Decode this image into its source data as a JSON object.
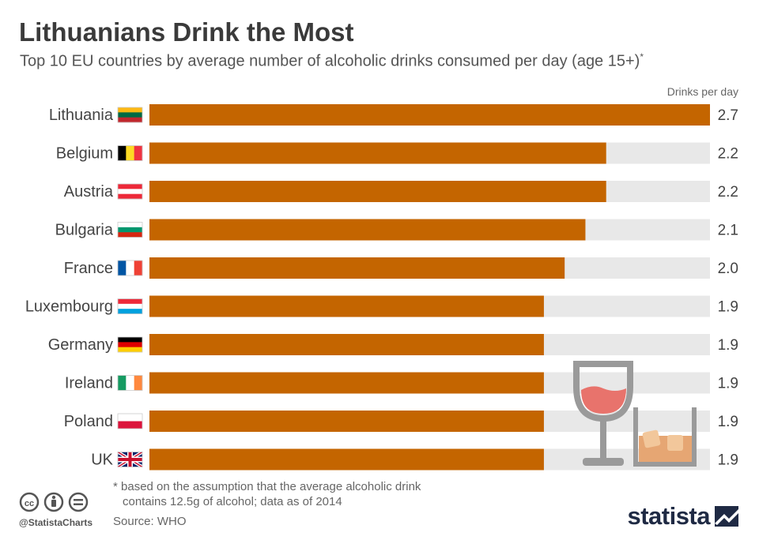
{
  "title": "Lithuanians Drink the Most",
  "subtitle": "Top 10 EU countries by average number of alcoholic drinks consumed per day (age 15+)",
  "subtitle_mark": "*",
  "unit_label": "Drinks per day",
  "footnote": {
    "line1": "* based on the assumption that the average alcoholic drink",
    "line2": "contains 12.5g of alcohol; data as of 2014"
  },
  "source": "Source: WHO",
  "handle": "@StatistaCharts",
  "brand": "statista",
  "colors": {
    "bar": "#c46500",
    "track": "#e8e8e8",
    "text": "#444444"
  },
  "chart_data": {
    "type": "bar",
    "orientation": "horizontal",
    "title": "Lithuanians Drink the Most",
    "subtitle": "Top 10 EU countries by average number of alcoholic drinks consumed per day (age 15+)",
    "xlabel": "Drinks per day",
    "xlim": [
      0,
      2.7
    ],
    "categories": [
      "Lithuania",
      "Belgium",
      "Austria",
      "Bulgaria",
      "France",
      "Luxembourg",
      "Germany",
      "Ireland",
      "Poland",
      "UK"
    ],
    "values": [
      2.7,
      2.2,
      2.2,
      2.1,
      2.0,
      1.9,
      1.9,
      1.9,
      1.9,
      1.9
    ],
    "value_labels": [
      "2.7",
      "2.2",
      "2.2",
      "2.1",
      "2.0",
      "1.9",
      "1.9",
      "1.9",
      "1.9",
      "1.9"
    ],
    "flags": [
      "lithuania-flag-icon",
      "belgium-flag-icon",
      "austria-flag-icon",
      "bulgaria-flag-icon",
      "france-flag-icon",
      "luxembourg-flag-icon",
      "germany-flag-icon",
      "ireland-flag-icon",
      "poland-flag-icon",
      "uk-flag-icon"
    ]
  }
}
